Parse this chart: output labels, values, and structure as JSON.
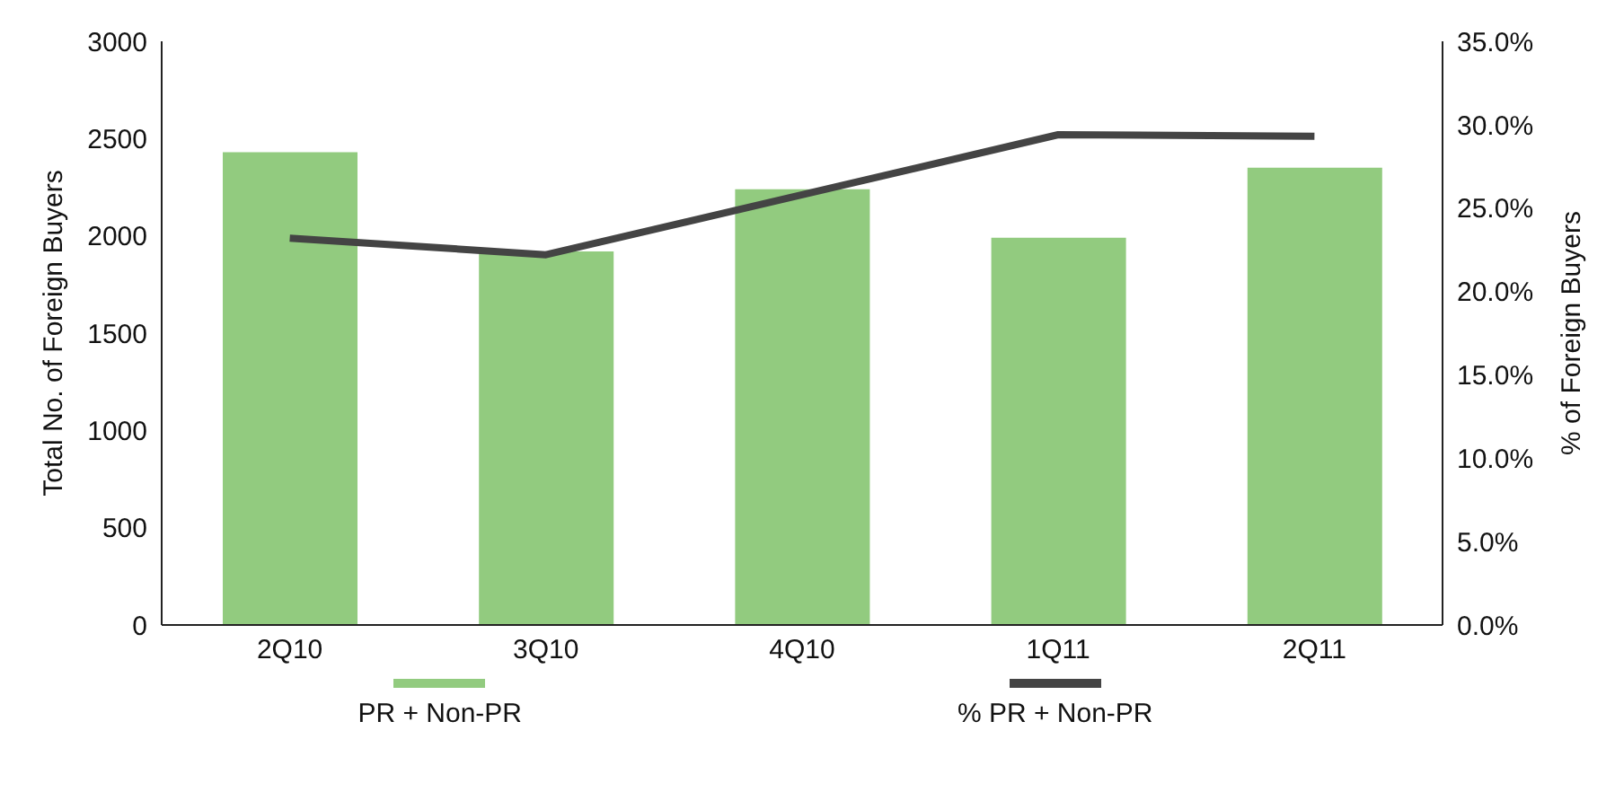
{
  "chart_data": {
    "type": "bar",
    "categories": [
      "2Q10",
      "3Q10",
      "4Q10",
      "1Q11",
      "2Q11"
    ],
    "series": [
      {
        "name": "PR + Non-PR",
        "color": "#92cb7f",
        "values": [
          2430,
          1920,
          2240,
          1990,
          2350
        ]
      },
      {
        "name": "% PR + Non-PR",
        "type": "line",
        "axis": "y2",
        "color": "#444444",
        "values": [
          23.2,
          22.2,
          25.8,
          29.4,
          29.3
        ]
      }
    ],
    "ylabel": "Total No. of Foreign Buyers",
    "y2label": "% of Foreign Buyers",
    "ylim": [
      0,
      3000
    ],
    "yticks": [
      0,
      500,
      1000,
      1500,
      2000,
      2500,
      3000
    ],
    "y2lim": [
      0,
      35
    ],
    "y2ticks": [
      {
        "value": 0,
        "label": "0.0%"
      },
      {
        "value": 5,
        "label": "5.0%"
      },
      {
        "value": 10,
        "label": "10.0%"
      },
      {
        "value": 15,
        "label": "15.0%"
      },
      {
        "value": 20,
        "label": "20.0%"
      },
      {
        "value": 25,
        "label": "25.0%"
      },
      {
        "value": 30,
        "label": "30.0%"
      },
      {
        "value": 35,
        "label": "35.0%"
      }
    ],
    "legend": "bottom",
    "grid": false,
    "marker": "none"
  }
}
